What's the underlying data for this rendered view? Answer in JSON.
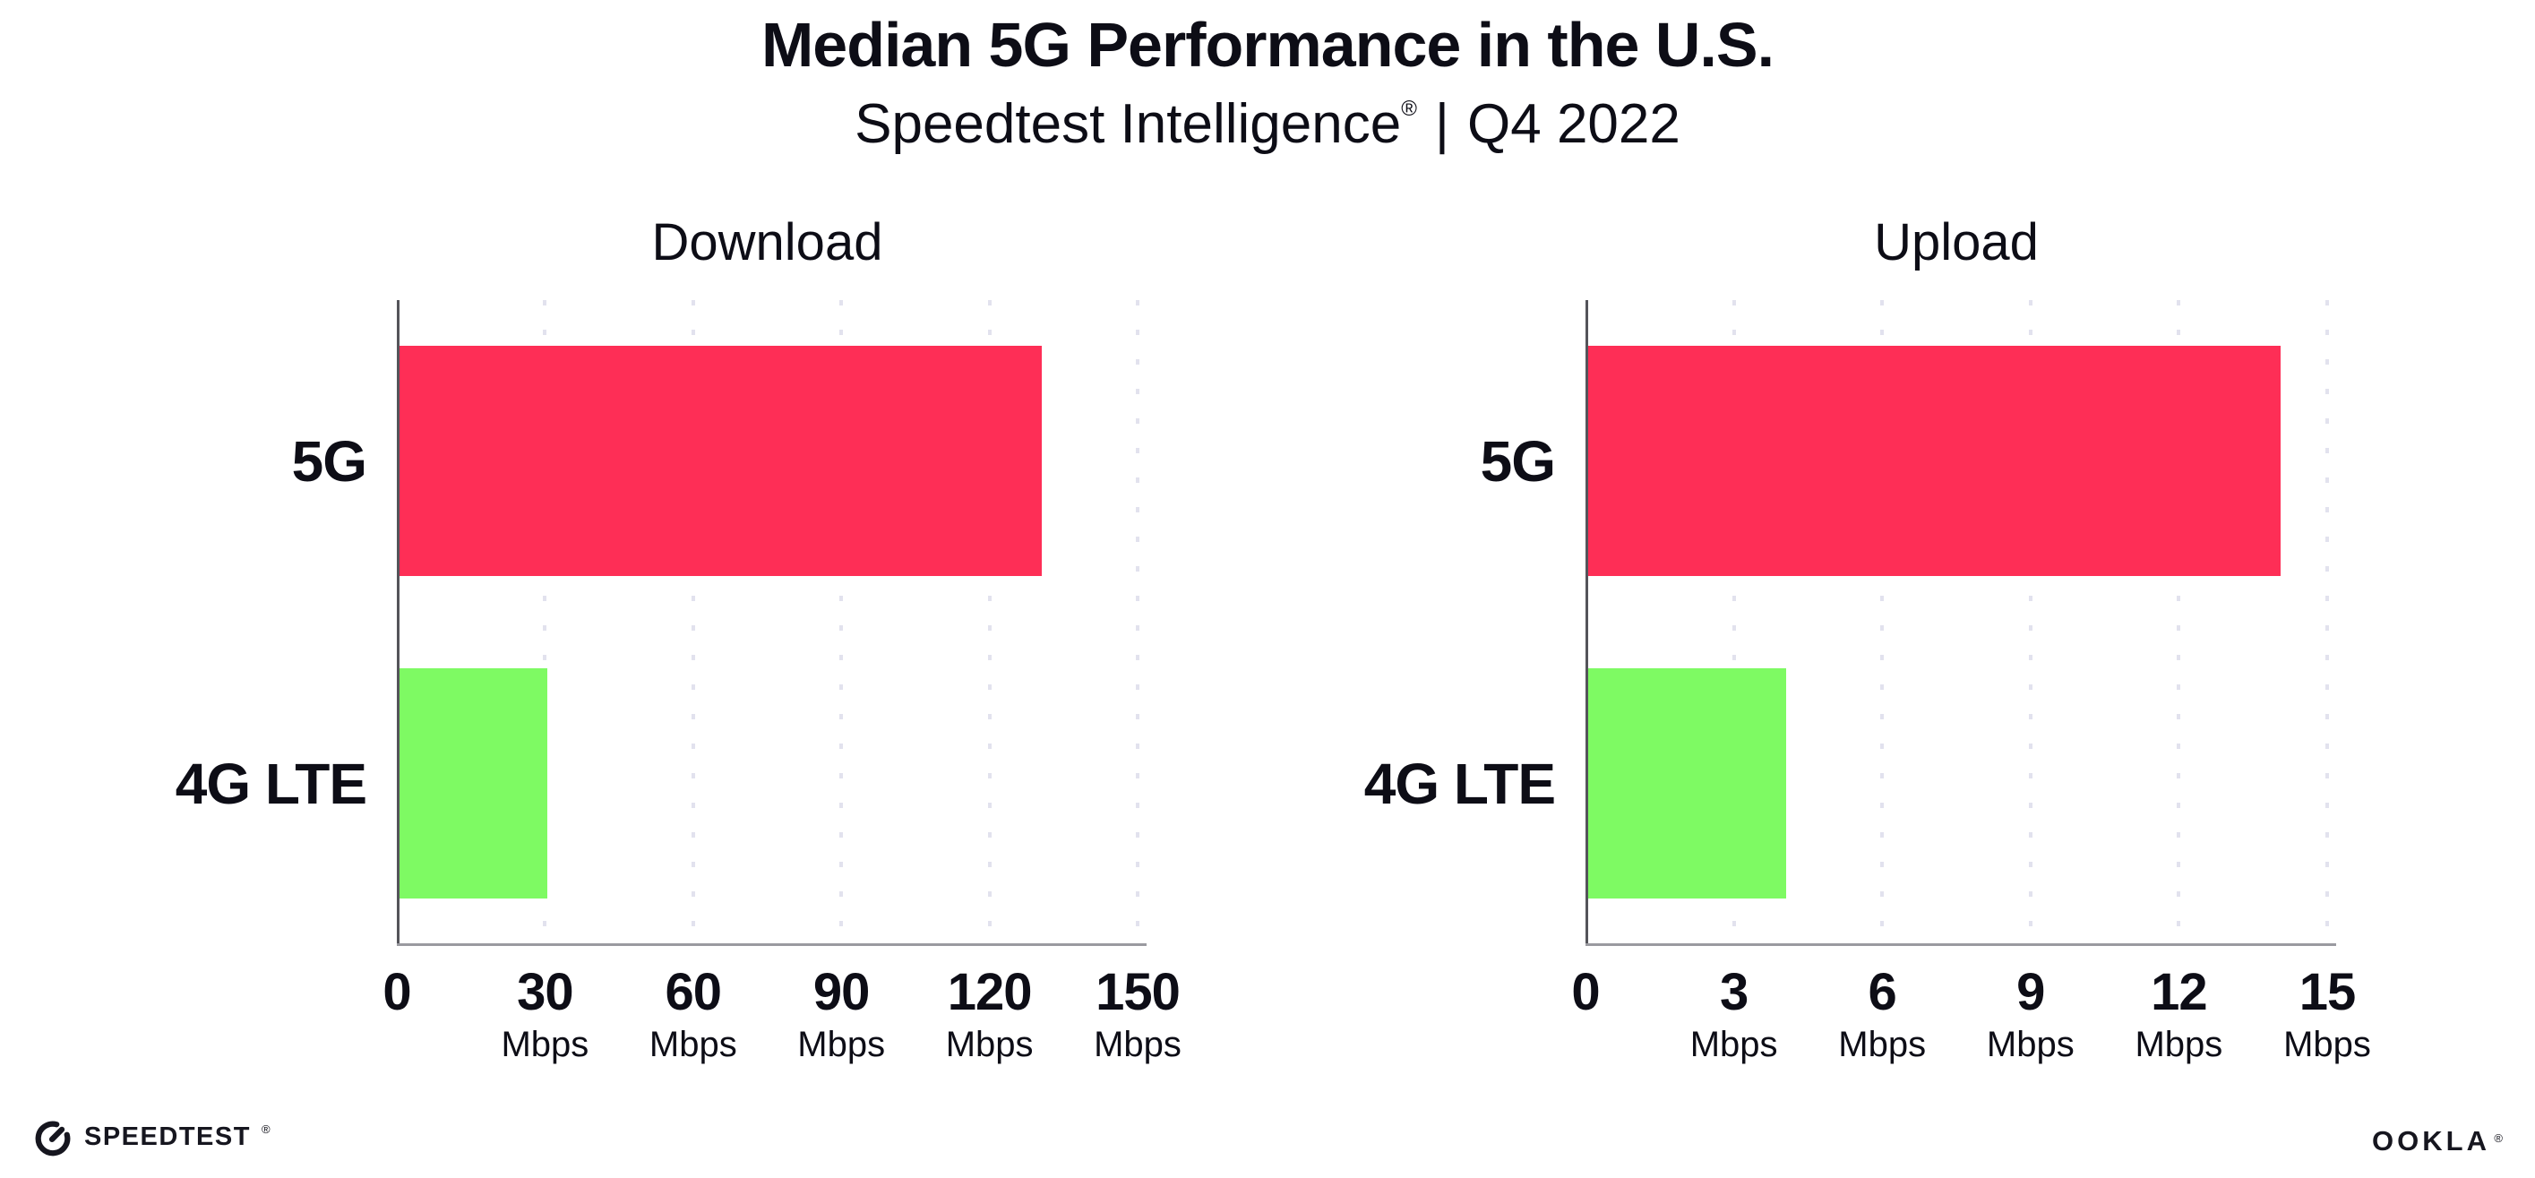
{
  "title": "Median 5G Performance in the U.S.",
  "subtitle": {
    "brand": "Speedtest Intelligence",
    "registered_mark": "®",
    "divider": "|",
    "period": "Q4 2022"
  },
  "chart_data": [
    {
      "type": "bar",
      "orientation": "horizontal",
      "title": "Download",
      "categories": [
        "5G",
        "4G LTE"
      ],
      "values": [
        130,
        30
      ],
      "unit": "Mbps",
      "xlim": [
        0,
        150
      ],
      "xticks": [
        0,
        30,
        60,
        90,
        120,
        150
      ],
      "bar_colors": [
        "#fe2e56",
        "#7efa63"
      ],
      "grid": "dotted vertical gridlines at ticks",
      "legend": "none"
    },
    {
      "type": "bar",
      "orientation": "horizontal",
      "title": "Upload",
      "categories": [
        "5G",
        "4G LTE"
      ],
      "values": [
        14,
        4
      ],
      "unit": "Mbps",
      "xlim": [
        0,
        15
      ],
      "xticks": [
        0,
        3,
        6,
        9,
        12,
        15
      ],
      "bar_colors": [
        "#fe2e56",
        "#7efa63"
      ],
      "grid": "dotted vertical gridlines at ticks",
      "legend": "none"
    }
  ],
  "footer": {
    "speedtest_logo_text": "SPEEDTEST",
    "speedtest_mark": "®",
    "ookla_logo_text": "OOKLA",
    "ookla_mark": "®"
  },
  "colors": {
    "bar_5g": "#fe2e56",
    "bar_4g_lte": "#7efa63",
    "text": "#0d0d16",
    "x_axis": "#9a9aa0",
    "y_axis": "#54545a",
    "gridline": "#e2e2ee",
    "background": "#ffffff"
  }
}
